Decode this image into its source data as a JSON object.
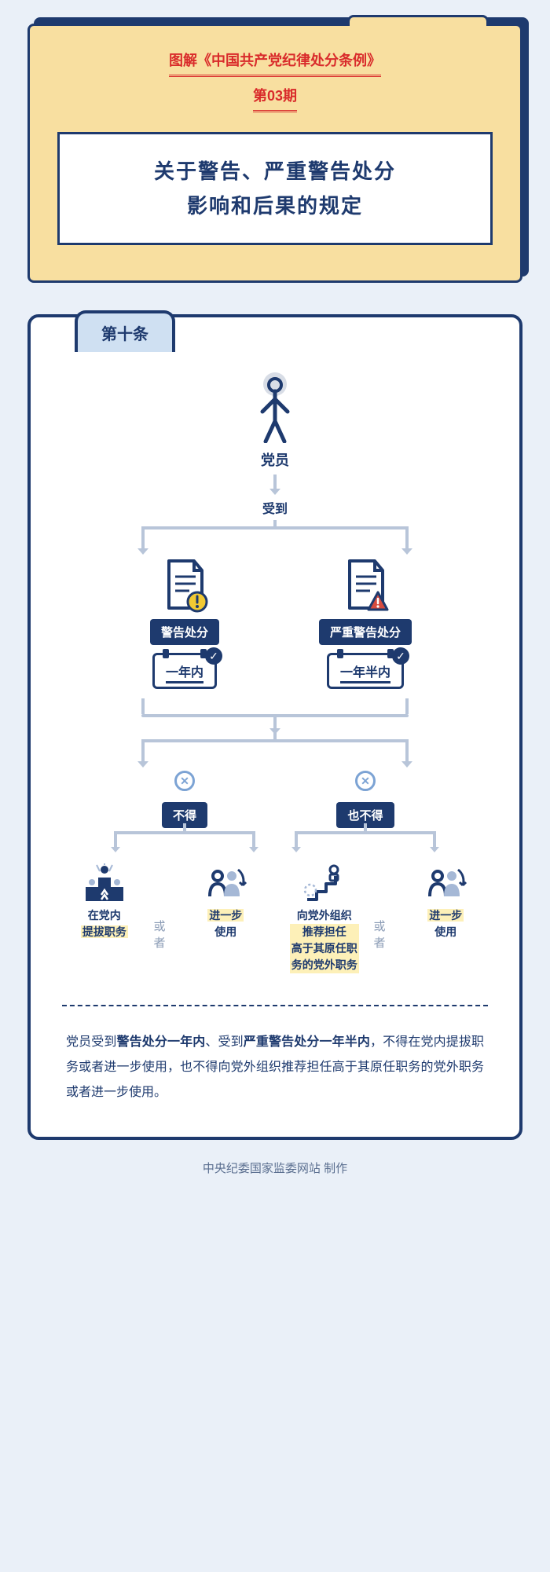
{
  "colors": {
    "bg": "#eaf0f8",
    "navy": "#1e3a6e",
    "card": "#f8dfa0",
    "red": "#d92b2b",
    "highlight": "#fdf0b8",
    "line": "#b8c5d9",
    "lightblue": "#7ca3d4",
    "tab_bg": "#cfe0f2"
  },
  "header": {
    "series": "图解《中国共产党纪律处分条例》",
    "issue": "第03期",
    "title_l1": "关于警告、严重警告处分",
    "title_l2": "影响和后果的规定"
  },
  "panel": {
    "tab": "第十条",
    "flow": {
      "root": "党员",
      "receives": "受到",
      "branch_a": {
        "label": "警告处分",
        "period": "一年内",
        "warn_color": "#f2c933"
      },
      "branch_b": {
        "label": "严重警告处分",
        "period": "一年半内",
        "warn_color": "#d64b3f"
      },
      "not_a": "不得",
      "not_b": "也不得",
      "or": "或者",
      "leaf1": {
        "pre": "在党内",
        "hl": "提拔职务"
      },
      "leaf2": {
        "hl": "进一步",
        "post": "使用"
      },
      "leaf3": {
        "pre": "向党外组织",
        "hl": "推荐担任\n高于其原任职\n务的党外职务"
      },
      "leaf4": {
        "hl": "进一步",
        "post": "使用"
      }
    },
    "summary": "党员受到<b>警告处分一年内</b>、受到<b>严重警告处分一年半内</b>，不得在党内提拔职务或者进一步使用，也不得向党外组织推荐担任高于其原任职务的党外职务或者进一步使用。"
  },
  "footer": "中央纪委国家监委网站 制作"
}
